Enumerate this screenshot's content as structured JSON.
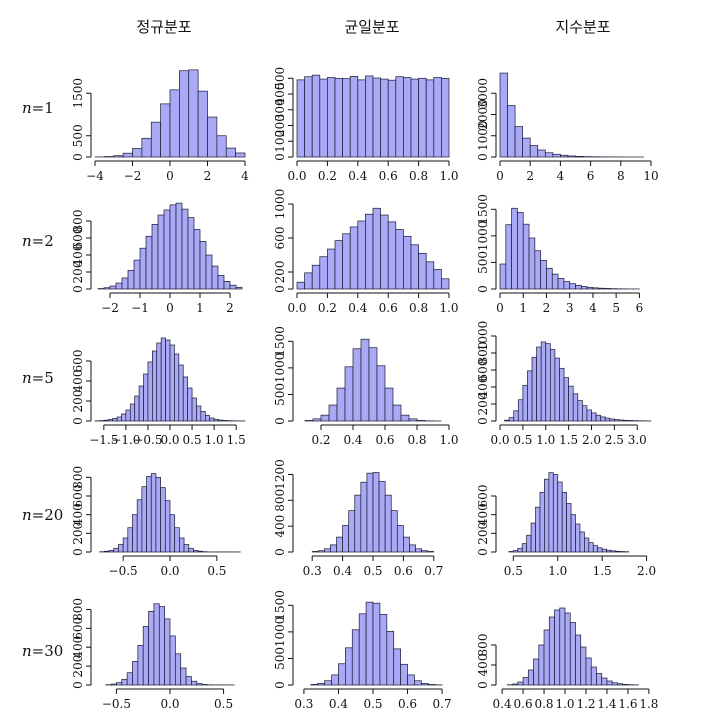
{
  "column_titles": [
    "정규분포",
    "균일분포",
    "지수분포"
  ],
  "row_labels": [
    {
      "var": "n",
      "rest": "=1"
    },
    {
      "var": "n",
      "rest": "=2"
    },
    {
      "var": "n",
      "rest": "=5"
    },
    {
      "var": "n",
      "rest": "=20"
    },
    {
      "var": "n",
      "rest": "=30"
    }
  ],
  "chart_data": [
    {
      "type": "bar",
      "row": 0,
      "col": 0,
      "title": "",
      "xlim": [
        -4,
        4
      ],
      "ylim": [
        0,
        2000
      ],
      "xticks": [
        -4,
        -2,
        0,
        2,
        4
      ],
      "xtick_labels": [
        "−4",
        "−2",
        "0",
        "2",
        "4"
      ],
      "yticks": [
        0,
        500,
        1500
      ],
      "ytick_labels": [
        "0",
        "500",
        "1500"
      ],
      "bin_start": -4.0,
      "bin_width": 0.5,
      "values": [
        2,
        10,
        30,
        90,
        200,
        440,
        820,
        1250,
        1580,
        2030,
        2050,
        1550,
        940,
        500,
        210,
        95,
        35,
        12
      ]
    },
    {
      "type": "bar",
      "row": 0,
      "col": 1,
      "title": "",
      "xlim": [
        0,
        1
      ],
      "ylim": [
        0,
        540
      ],
      "xticks": [
        0,
        0.2,
        0.4,
        0.6,
        0.8,
        1.0
      ],
      "xtick_labels": [
        "0.0",
        "0.2",
        "0.4",
        "0.6",
        "0.8",
        "1.0"
      ],
      "yticks": [
        0,
        100,
        200,
        300,
        400,
        500
      ],
      "ytick_labels": [
        "0",
        "100",
        "200",
        "300",
        "400",
        "500"
      ],
      "bin_start": 0.0,
      "bin_width": 0.05,
      "values": [
        490,
        510,
        520,
        495,
        505,
        500,
        498,
        512,
        490,
        515,
        502,
        495,
        488,
        510,
        505,
        495,
        500,
        490,
        505,
        500
      ]
    },
    {
      "type": "bar",
      "row": 0,
      "col": 2,
      "title": "",
      "xlim": [
        0,
        10
      ],
      "ylim": [
        0,
        4000
      ],
      "xticks": [
        0,
        2,
        4,
        6,
        8,
        10
      ],
      "xtick_labels": [
        "0",
        "2",
        "4",
        "6",
        "8",
        "10"
      ],
      "yticks": [
        0,
        1000,
        2000,
        3000
      ],
      "ytick_labels": [
        "0",
        "1000",
        "2000",
        "3000"
      ],
      "bin_start": 0.0,
      "bin_width": 0.5,
      "values": [
        3950,
        2420,
        1430,
        890,
        540,
        330,
        200,
        130,
        80,
        48,
        30,
        18,
        12,
        7,
        5,
        3,
        2,
        1,
        1,
        0
      ]
    },
    {
      "type": "bar",
      "row": 1,
      "col": 0,
      "title": "",
      "xlim": [
        -2.5,
        2.5
      ],
      "ylim": [
        0,
        1000
      ],
      "xticks": [
        -2,
        -1,
        0,
        1,
        2
      ],
      "xtick_labels": [
        "−2",
        "−1",
        "0",
        "1",
        "2"
      ],
      "yticks": [
        0,
        200,
        400,
        600,
        800
      ],
      "ytick_labels": [
        "0",
        "200",
        "400",
        "600",
        "800"
      ],
      "bin_start": -2.6,
      "bin_width": 0.2,
      "values": [
        2,
        5,
        15,
        35,
        70,
        130,
        220,
        340,
        480,
        620,
        760,
        870,
        930,
        990,
        1010,
        940,
        840,
        700,
        560,
        400,
        270,
        160,
        90,
        45,
        20,
        8
      ]
    },
    {
      "type": "bar",
      "row": 1,
      "col": 1,
      "title": "",
      "xlim": [
        0,
        1
      ],
      "ylim": [
        0,
        1000
      ],
      "xticks": [
        0,
        0.2,
        0.4,
        0.6,
        0.8,
        1.0
      ],
      "xtick_labels": [
        "0.0",
        "0.2",
        "0.4",
        "0.6",
        "0.8",
        "1.0"
      ],
      "yticks": [
        0,
        200,
        600,
        1000
      ],
      "ytick_labels": [
        "0",
        "200",
        "600",
        "1000"
      ],
      "bin_start": 0.0,
      "bin_width": 0.05,
      "values": [
        80,
        190,
        280,
        380,
        470,
        570,
        650,
        730,
        800,
        880,
        950,
        870,
        790,
        700,
        620,
        520,
        420,
        320,
        230,
        120
      ]
    },
    {
      "type": "bar",
      "row": 1,
      "col": 2,
      "title": "",
      "xlim": [
        0,
        6.5
      ],
      "ylim": [
        0,
        1600
      ],
      "xticks": [
        0,
        1,
        2,
        3,
        4,
        5,
        6
      ],
      "xtick_labels": [
        "0",
        "1",
        "2",
        "3",
        "4",
        "5",
        "6"
      ],
      "yticks": [
        0,
        500,
        1000,
        1500
      ],
      "ytick_labels": [
        "0",
        "500",
        "1000",
        "1500"
      ],
      "bin_start": 0.0,
      "bin_width": 0.25,
      "values": [
        470,
        1210,
        1520,
        1440,
        1220,
        960,
        720,
        540,
        390,
        280,
        200,
        140,
        100,
        70,
        48,
        32,
        22,
        15,
        10,
        6,
        4,
        2,
        1,
        1,
        0,
        0
      ]
    },
    {
      "type": "bar",
      "row": 2,
      "col": 0,
      "title": "",
      "xlim": [
        -1.7,
        1.7
      ],
      "ylim": [
        0,
        850
      ],
      "xticks": [
        -1.5,
        -1.0,
        -0.5,
        0,
        0.5,
        1.0,
        1.5
      ],
      "xtick_labels": [
        "−1.5",
        "−1.0",
        "−0.5",
        "0.0",
        "0.5",
        "1.0",
        "1.5"
      ],
      "yticks": [
        0,
        200,
        400,
        600
      ],
      "ytick_labels": [
        "0",
        "200",
        "400",
        "600"
      ],
      "bin_start": -1.7,
      "bin_width": 0.1,
      "values": [
        2,
        4,
        8,
        15,
        25,
        40,
        70,
        110,
        170,
        250,
        350,
        470,
        590,
        700,
        780,
        830,
        810,
        760,
        670,
        560,
        440,
        330,
        230,
        150,
        95,
        55,
        30,
        17,
        9,
        5,
        3,
        2,
        1,
        1
      ]
    },
    {
      "type": "bar",
      "row": 2,
      "col": 1,
      "title": "",
      "xlim": [
        0.05,
        1.0
      ],
      "ylim": [
        0,
        1600
      ],
      "xticks": [
        0.2,
        0.4,
        0.6,
        0.8,
        1.0
      ],
      "xtick_labels": [
        "0.2",
        "0.4",
        "0.6",
        "0.8",
        "1.0"
      ],
      "yticks": [
        0,
        500,
        1000,
        1500
      ],
      "ytick_labels": [
        "0",
        "500",
        "1000",
        "1500"
      ],
      "bin_start": 0.1,
      "bin_width": 0.05,
      "values": [
        10,
        40,
        110,
        300,
        620,
        1020,
        1360,
        1540,
        1380,
        1040,
        620,
        300,
        110,
        40,
        10,
        3,
        1
      ]
    },
    {
      "type": "bar",
      "row": 2,
      "col": 2,
      "title": "",
      "xlim": [
        0,
        3.3
      ],
      "ylim": [
        0,
        1000
      ],
      "xticks": [
        0,
        0.5,
        1.0,
        1.5,
        2.0,
        2.5,
        3.0
      ],
      "xtick_labels": [
        "0.0",
        "0.5",
        "1.0",
        "1.5",
        "2.0",
        "2.5",
        "3.0"
      ],
      "yticks": [
        0,
        200,
        400,
        600,
        800,
        1000
      ],
      "ytick_labels": [
        "0",
        "200",
        "400",
        "600",
        "800",
        "1000"
      ],
      "bin_start": 0.1,
      "bin_width": 0.1,
      "values": [
        10,
        40,
        120,
        250,
        420,
        590,
        750,
        870,
        930,
        910,
        840,
        740,
        620,
        510,
        410,
        320,
        240,
        180,
        130,
        95,
        68,
        48,
        34,
        24,
        17,
        12,
        8,
        6,
        4,
        3,
        2,
        1
      ]
    },
    {
      "type": "bar",
      "row": 3,
      "col": 0,
      "title": "",
      "xlim": [
        -0.8,
        0.8
      ],
      "ylim": [
        0,
        900
      ],
      "xticks": [
        -0.5,
        0,
        0.5
      ],
      "xtick_labels": [
        "−0.5",
        "0.0",
        "0.5"
      ],
      "yticks": [
        0,
        200,
        400,
        600,
        800
      ],
      "ytick_labels": [
        "0",
        "200",
        "400",
        "600",
        "800"
      ],
      "bin_start": -0.75,
      "bin_width": 0.05,
      "values": [
        3,
        8,
        18,
        40,
        80,
        150,
        260,
        400,
        560,
        700,
        810,
        840,
        800,
        690,
        550,
        400,
        260,
        150,
        80,
        40,
        18,
        8,
        3,
        1,
        1,
        1,
        1,
        1,
        1,
        1
      ]
    },
    {
      "type": "bar",
      "row": 3,
      "col": 1,
      "title": "",
      "xlim": [
        0.25,
        0.75
      ],
      "ylim": [
        0,
        1300
      ],
      "xticks": [
        0.3,
        0.4,
        0.5,
        0.6,
        0.7
      ],
      "xtick_labels": [
        "0.3",
        "0.4",
        "0.5",
        "0.6",
        "0.7"
      ],
      "yticks": [
        0,
        400,
        800,
        1200
      ],
      "ytick_labels": [
        "0",
        "400",
        "800",
        "1200"
      ],
      "bin_start": 0.3,
      "bin_width": 0.02,
      "values": [
        8,
        20,
        50,
        110,
        230,
        410,
        640,
        880,
        1080,
        1220,
        1230,
        1090,
        880,
        640,
        410,
        230,
        110,
        50,
        20,
        8
      ]
    },
    {
      "type": "bar",
      "row": 3,
      "col": 2,
      "title": "",
      "xlim": [
        0.35,
        2.05
      ],
      "ylim": [
        0,
        900
      ],
      "xticks": [
        0.5,
        1.0,
        1.5,
        2.0
      ],
      "xtick_labels": [
        "0.5",
        "1.0",
        "1.5",
        "2.0"
      ],
      "yticks": [
        0,
        200,
        400,
        600
      ],
      "ytick_labels": [
        "0",
        "200",
        "400",
        "600"
      ],
      "bin_start": 0.45,
      "bin_width": 0.05,
      "values": [
        5,
        15,
        40,
        90,
        180,
        310,
        480,
        640,
        780,
        850,
        830,
        750,
        640,
        520,
        400,
        300,
        215,
        150,
        100,
        68,
        45,
        30,
        19,
        12,
        8,
        5,
        3
      ]
    },
    {
      "type": "bar",
      "row": 4,
      "col": 0,
      "title": "",
      "xlim": [
        -0.7,
        0.7
      ],
      "ylim": [
        0,
        900
      ],
      "xticks": [
        -0.5,
        0,
        0.5
      ],
      "xtick_labels": [
        "−0.5",
        "0.0",
        "0.5"
      ],
      "yticks": [
        0,
        200,
        400,
        600,
        800
      ],
      "ytick_labels": [
        "0",
        "200",
        "400",
        "600",
        "800"
      ],
      "bin_start": -0.6,
      "bin_width": 0.05,
      "values": [
        3,
        10,
        25,
        60,
        130,
        250,
        420,
        620,
        780,
        860,
        830,
        700,
        520,
        330,
        180,
        90,
        40,
        15,
        5,
        2,
        1,
        1,
        1,
        1
      ]
    },
    {
      "type": "bar",
      "row": 4,
      "col": 1,
      "title": "",
      "xlim": [
        0.28,
        0.72
      ],
      "ylim": [
        0,
        1600
      ],
      "xticks": [
        0.3,
        0.4,
        0.5,
        0.6,
        0.7
      ],
      "xtick_labels": [
        "0.3",
        "0.4",
        "0.5",
        "0.6",
        "0.7"
      ],
      "yticks": [
        0,
        500,
        1000,
        1500
      ],
      "ytick_labels": [
        "0",
        "500",
        "1000",
        "1500"
      ],
      "bin_start": 0.32,
      "bin_width": 0.02,
      "values": [
        10,
        30,
        80,
        190,
        400,
        700,
        1040,
        1340,
        1560,
        1540,
        1330,
        1010,
        680,
        390,
        190,
        80,
        30,
        10,
        3
      ]
    },
    {
      "type": "bar",
      "row": 4,
      "col": 2,
      "title": "",
      "xlim": [
        0.38,
        1.82
      ],
      "ylim": [
        0,
        1700
      ],
      "xticks": [
        0.4,
        0.6,
        0.8,
        1.0,
        1.2,
        1.4,
        1.6,
        1.8
      ],
      "xtick_labels": [
        "0.4",
        "0.6",
        "0.8",
        "1.0",
        "1.2",
        "1.4",
        "1.6",
        "1.8"
      ],
      "yticks": [
        0,
        400,
        800
      ],
      "ytick_labels": [
        "0",
        "400",
        "800"
      ],
      "bin_start": 0.45,
      "bin_width": 0.05,
      "values": [
        5,
        20,
        60,
        150,
        300,
        520,
        800,
        1100,
        1360,
        1500,
        1540,
        1440,
        1250,
        1000,
        760,
        540,
        360,
        230,
        140,
        80,
        45,
        25,
        12,
        6,
        3
      ]
    }
  ]
}
